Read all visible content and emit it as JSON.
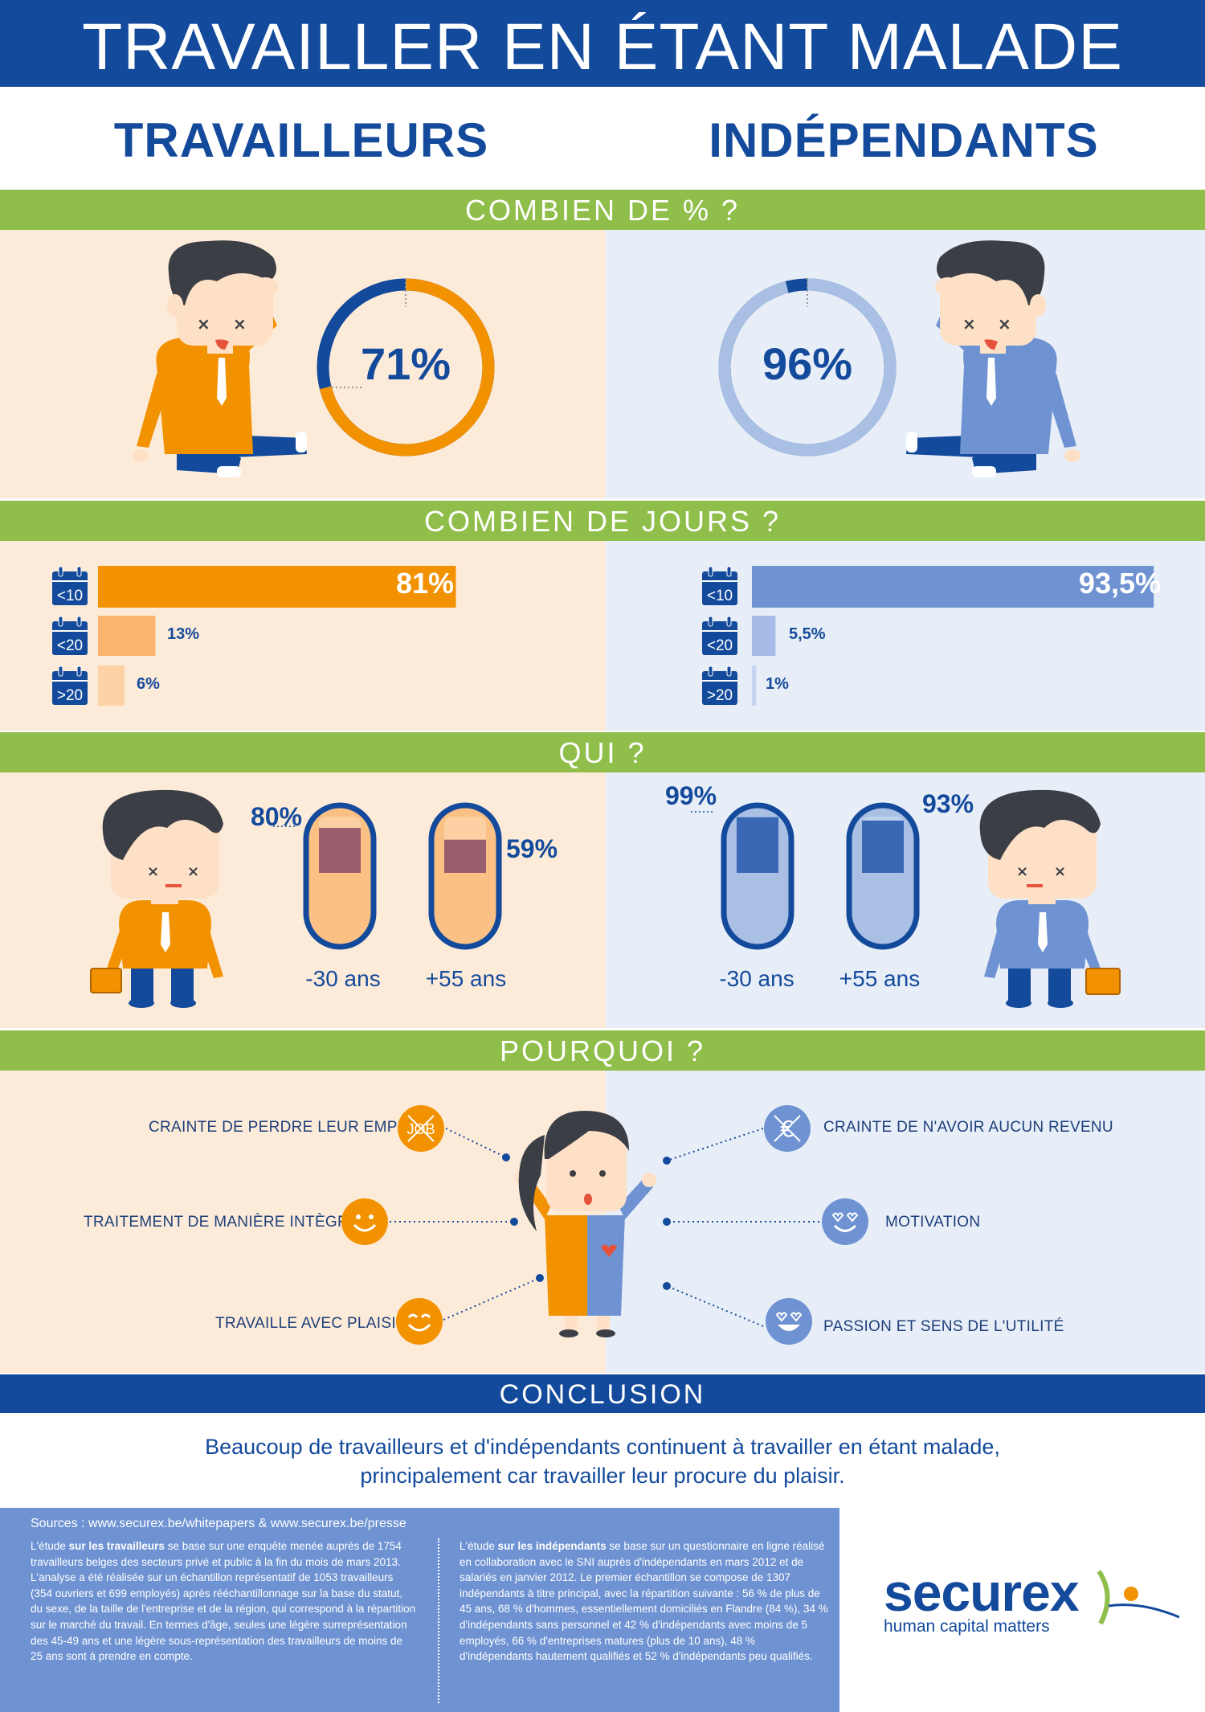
{
  "header": {
    "title": "TRAVAILLER EN ÉTANT MALADE"
  },
  "columns": {
    "left": "TRAVAILLEURS",
    "right": "INDÉPENDANTS"
  },
  "sections": {
    "combien_pct": "COMBIEN DE % ?",
    "combien_jours": "COMBIEN DE JOURS ?",
    "qui": "QUI ?",
    "pourquoi": "POURQUOI ?",
    "conclusion": "CONCLUSION"
  },
  "percent": {
    "workers": {
      "label": "71%",
      "value": 71,
      "color": "#f39200"
    },
    "independents": {
      "label": "96%",
      "value": 96,
      "color": "#a9c0e4"
    }
  },
  "days": {
    "categories": [
      "<10",
      "<20",
      ">20"
    ],
    "workers": [
      {
        "label": "81%",
        "value": 81,
        "color": "#f39200"
      },
      {
        "label": "13%",
        "value": 13,
        "color": "#fbb46e"
      },
      {
        "label": "6%",
        "value": 6,
        "color": "#fcd2a6"
      }
    ],
    "independents": [
      {
        "label": "93,5%",
        "value": 93.5,
        "color": "#6f93d2"
      },
      {
        "label": "5,5%",
        "value": 5.5,
        "color": "#a6bbe5"
      },
      {
        "label": "1%",
        "value": 1,
        "color": "#c6d4ef"
      }
    ]
  },
  "qui": {
    "workers": [
      {
        "pct": "80%",
        "age": "-30 ans",
        "value": 80
      },
      {
        "pct": "59%",
        "age": "+55 ans",
        "value": 59
      }
    ],
    "independents": [
      {
        "pct": "99%",
        "age": "-30 ans",
        "value": 99
      },
      {
        "pct": "93%",
        "age": "+55 ans",
        "value": 93
      }
    ]
  },
  "pourquoi": {
    "workers": [
      "CRAINTE DE PERDRE LEUR EMPLOI",
      "TRAITEMENT DE MANIÈRE INTÈGRE",
      "TRAVAILLE AVEC PLAISIR"
    ],
    "independents": [
      "CRAINTE DE N'AVOIR AUCUN REVENU",
      "MOTIVATION",
      "PASSION ET SENS DE L'UTILITÉ"
    ],
    "job_icon_text": "JOB"
  },
  "conclusion": {
    "line1": "Beaucoup de travailleurs et d'indépendants continuent à travailler en étant malade,",
    "line2": "principalement car travailler leur procure du plaisir."
  },
  "sources": {
    "title": "Sources : www.securex.be/whitepapers & www.securex.be/presse",
    "left_pre": "L'étude ",
    "left_bold": "sur les travailleurs",
    "left_post": " se base sur une enquête menée auprès de 1754 travailleurs belges des secteurs privé et public à la fin du mois de mars 2013. L'analyse a été réalisée sur un échantillon représentatif de 1053 travailleurs (354 ouvriers et 699 employés) après rééchantillonnage sur la base du statut, du sexe, de la taille de l'entreprise et de la région, qui correspond à la répartition sur le marché du travail. En termes d'âge, seules une légère surreprésentation des 45-49 ans et une légère sous-représentation des travailleurs de moins de 25 ans sont à prendre en compte.",
    "right_pre": "L'étude ",
    "right_bold": "sur les indépendants",
    "right_post": " se base sur un questionnaire en ligne réalisé en collaboration avec le SNI auprès d'indépendants en mars 2012 et de salariés en janvier 2012. Le premier échantillon se compose de 1307 indépendants à titre principal, avec la répartition suivante : 56 % de plus de 45 ans, 68 % d'hommes, essentiellement domiciliés en Flandre (84 %), 34 % d'indépendants sans personnel et 42 % d'indépendants avec moins de 5 employés, 66 % d'entreprises matures (plus de 10 ans), 48 % d'indépendants hautement qualifiés et 52 % d'indépendants peu qualifiés."
  },
  "logo": {
    "name": "securex",
    "tagline": "human capital matters"
  },
  "colors": {
    "navy": "#134a9b",
    "green": "#8fbe4a",
    "orange": "#f39200",
    "blue": "#6f93d2"
  }
}
